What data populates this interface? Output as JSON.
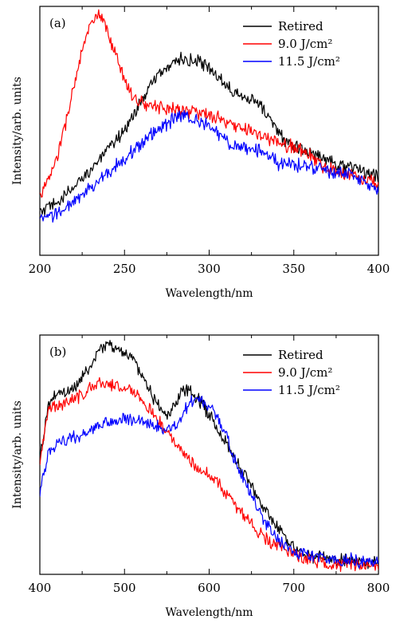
{
  "chart_data": [
    {
      "panel": "(a)",
      "type": "line",
      "xlabel": "Wavelength/nm",
      "ylabel": "Intensity/arb. units",
      "xlim": [
        200,
        400
      ],
      "ylim": [
        0,
        1
      ],
      "xticks": [
        200,
        250,
        300,
        350,
        400
      ],
      "legend_position": "top-right",
      "x": [
        200,
        205,
        210,
        215,
        220,
        225,
        230,
        235,
        240,
        245,
        250,
        255,
        260,
        265,
        270,
        275,
        280,
        285,
        290,
        295,
        300,
        305,
        310,
        315,
        320,
        325,
        330,
        335,
        340,
        345,
        350,
        355,
        360,
        365,
        370,
        375,
        380,
        385,
        390,
        395,
        400
      ],
      "series": [
        {
          "name": "Retired",
          "color": "#000000",
          "values": [
            0.17,
            0.19,
            0.21,
            0.24,
            0.27,
            0.31,
            0.35,
            0.38,
            0.42,
            0.46,
            0.51,
            0.56,
            0.62,
            0.68,
            0.72,
            0.76,
            0.78,
            0.79,
            0.78,
            0.77,
            0.75,
            0.72,
            0.69,
            0.66,
            0.64,
            0.63,
            0.6,
            0.56,
            0.5,
            0.46,
            0.44,
            0.42,
            0.41,
            0.4,
            0.39,
            0.37,
            0.36,
            0.35,
            0.34,
            0.33,
            0.31
          ]
        },
        {
          "name": "9.0 J/cm²",
          "color": "#ff0000",
          "values": [
            0.24,
            0.3,
            0.39,
            0.52,
            0.68,
            0.82,
            0.93,
            0.96,
            0.9,
            0.8,
            0.71,
            0.64,
            0.61,
            0.6,
            0.6,
            0.59,
            0.59,
            0.58,
            0.58,
            0.57,
            0.56,
            0.55,
            0.53,
            0.52,
            0.51,
            0.5,
            0.48,
            0.47,
            0.45,
            0.44,
            0.44,
            0.42,
            0.4,
            0.37,
            0.35,
            0.34,
            0.33,
            0.32,
            0.31,
            0.3,
            0.29
          ]
        },
        {
          "name": "11.5 J/cm²",
          "color": "#0000ff",
          "values": [
            0.14,
            0.15,
            0.17,
            0.19,
            0.21,
            0.24,
            0.27,
            0.3,
            0.33,
            0.36,
            0.39,
            0.42,
            0.45,
            0.48,
            0.51,
            0.53,
            0.55,
            0.56,
            0.55,
            0.54,
            0.52,
            0.49,
            0.46,
            0.44,
            0.43,
            0.43,
            0.42,
            0.4,
            0.37,
            0.36,
            0.37,
            0.36,
            0.35,
            0.35,
            0.34,
            0.33,
            0.33,
            0.32,
            0.3,
            0.27,
            0.26
          ]
        }
      ]
    },
    {
      "panel": "(b)",
      "type": "line",
      "xlabel": "Wavelength/nm",
      "ylabel": "Intensity/arb. units",
      "xlim": [
        400,
        800
      ],
      "ylim": [
        0,
        1
      ],
      "xticks": [
        400,
        500,
        600,
        700,
        800
      ],
      "legend_position": "top-right",
      "x": [
        400,
        410,
        420,
        430,
        440,
        450,
        460,
        470,
        480,
        490,
        500,
        510,
        520,
        530,
        540,
        550,
        560,
        570,
        580,
        590,
        600,
        610,
        620,
        630,
        640,
        650,
        660,
        670,
        680,
        690,
        700,
        710,
        720,
        730,
        740,
        750,
        760,
        770,
        780,
        790,
        800
      ],
      "series": [
        {
          "name": "Retired",
          "color": "#000000",
          "values": [
            0.48,
            0.7,
            0.76,
            0.76,
            0.78,
            0.82,
            0.88,
            0.94,
            0.96,
            0.94,
            0.93,
            0.9,
            0.84,
            0.77,
            0.7,
            0.66,
            0.7,
            0.78,
            0.76,
            0.72,
            0.67,
            0.61,
            0.55,
            0.49,
            0.43,
            0.37,
            0.31,
            0.25,
            0.2,
            0.15,
            0.12,
            0.1,
            0.08,
            0.07,
            0.07,
            0.06,
            0.06,
            0.05,
            0.05,
            0.05,
            0.05
          ]
        },
        {
          "name": "9.0 J/cm²",
          "color": "#ff0000",
          "values": [
            0.48,
            0.68,
            0.71,
            0.72,
            0.73,
            0.75,
            0.78,
            0.8,
            0.8,
            0.79,
            0.78,
            0.76,
            0.73,
            0.69,
            0.64,
            0.6,
            0.55,
            0.51,
            0.47,
            0.44,
            0.42,
            0.38,
            0.34,
            0.29,
            0.25,
            0.21,
            0.17,
            0.14,
            0.12,
            0.1,
            0.08,
            0.07,
            0.06,
            0.05,
            0.04,
            0.04,
            0.04,
            0.04,
            0.04,
            0.04,
            0.04
          ]
        },
        {
          "name": "11.5 J/cm²",
          "color": "#0000ff",
          "values": [
            0.35,
            0.5,
            0.55,
            0.56,
            0.57,
            0.58,
            0.6,
            0.62,
            0.63,
            0.64,
            0.65,
            0.65,
            0.64,
            0.63,
            0.62,
            0.6,
            0.62,
            0.68,
            0.72,
            0.73,
            0.71,
            0.66,
            0.58,
            0.48,
            0.4,
            0.33,
            0.26,
            0.2,
            0.15,
            0.12,
            0.1,
            0.09,
            0.08,
            0.07,
            0.07,
            0.06,
            0.06,
            0.06,
            0.05,
            0.05,
            0.05
          ]
        }
      ]
    }
  ]
}
